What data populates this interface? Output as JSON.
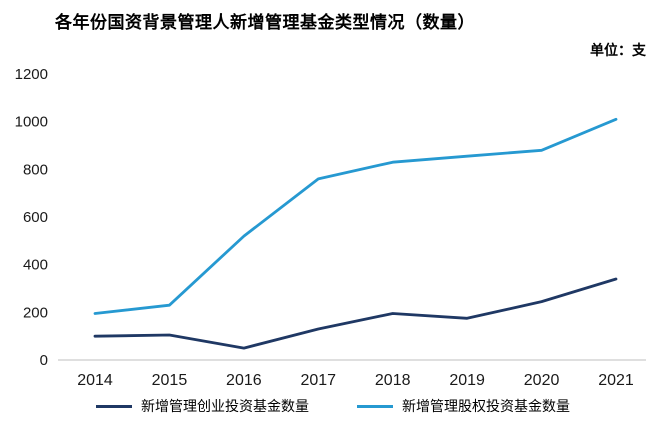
{
  "title": "各年份国资背景管理人新增管理基金类型情况（数量）",
  "unit_label": "单位：支",
  "chart_data": {
    "type": "line",
    "title": "各年份国资背景管理人新增管理基金类型情况（数量）",
    "unit": "单位：支",
    "categories": [
      "2014",
      "2015",
      "2016",
      "2017",
      "2018",
      "2019",
      "2020",
      "2021"
    ],
    "series": [
      {
        "name": "新增管理创业投资基金数量",
        "color": "#1F3864",
        "values": [
          100,
          105,
          50,
          130,
          195,
          175,
          245,
          340
        ]
      },
      {
        "name": "新增管理股权投资基金数量",
        "color": "#2699D1",
        "values": [
          195,
          230,
          520,
          760,
          830,
          855,
          880,
          1010
        ]
      }
    ],
    "xlabel": "",
    "ylabel": "",
    "ylim": [
      0,
      1200
    ],
    "yticks": [
      0,
      200,
      400,
      600,
      800,
      1000,
      1200
    ],
    "grid": false,
    "legend_position": "bottom",
    "axis_line_color": "#BFBFBF"
  }
}
